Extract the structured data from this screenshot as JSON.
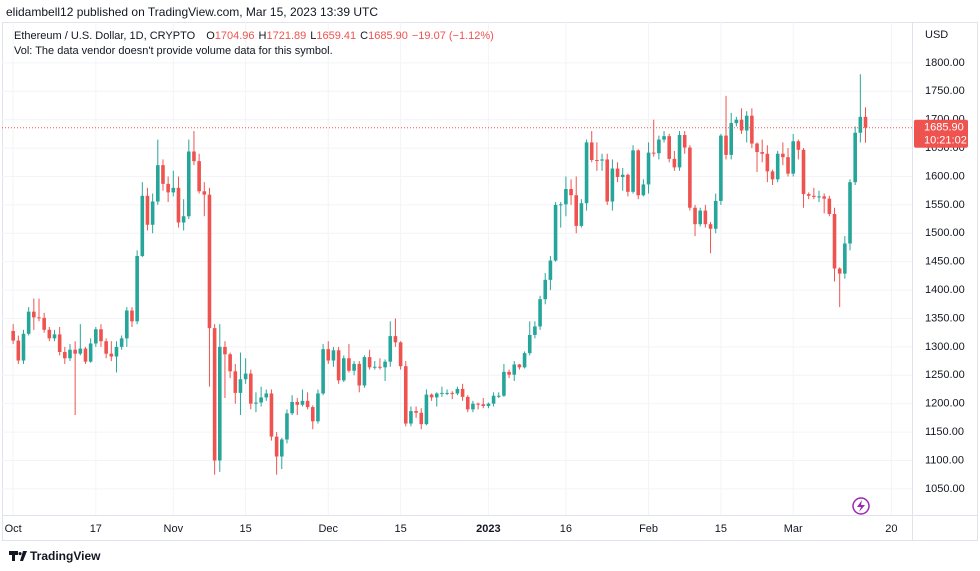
{
  "header": "elidambell12 published on TradingView.com, Mar 15, 2023 13:39 UTC",
  "footer": "TradingView",
  "chart_data": {
    "type": "candlestick",
    "title": "Ethereum / U.S. Dollar, 1D, CRYPTO",
    "ohlc_labels": [
      "O",
      "H",
      "L",
      "C"
    ],
    "ohlc_value_labels": [
      "1704.96",
      "1721.89",
      "1659.41",
      "1685.90"
    ],
    "change_label": "−19.07 (−1.12%)",
    "annotation": "Vol: The data vendor doesn't provide volume data for this symbol.",
    "y_axis_label": "USD",
    "last_price": {
      "value": 1685.9,
      "label": "1685.90"
    },
    "countdown": "10:21:02",
    "up_color": "#26a69a",
    "down_color": "#ef5350",
    "grid": true,
    "categories": [
      "Oct 1",
      "Oct 2",
      "Oct 3",
      "Oct 4",
      "Oct 5",
      "Oct 6",
      "Oct 7",
      "Oct 8",
      "Oct 9",
      "Oct 10",
      "Oct 11",
      "Oct 12",
      "Oct 13",
      "Oct 14",
      "Oct 15",
      "Oct 16",
      "Oct 17",
      "Oct 18",
      "Oct 19",
      "Oct 20",
      "Oct 21",
      "Oct 22",
      "Oct 23",
      "Oct 24",
      "Oct 25",
      "Oct 26",
      "Oct 27",
      "Oct 28",
      "Oct 29",
      "Oct 30",
      "Oct 31",
      "Nov 1",
      "Nov 2",
      "Nov 3",
      "Nov 4",
      "Nov 5",
      "Nov 6",
      "Nov 7",
      "Nov 8",
      "Nov 9",
      "Nov 10",
      "Nov 11",
      "Nov 12",
      "Nov 13",
      "Nov 14",
      "Nov 15",
      "Nov 16",
      "Nov 17",
      "Nov 18",
      "Nov 19",
      "Nov 20",
      "Nov 21",
      "Nov 22",
      "Nov 23",
      "Nov 24",
      "Nov 25",
      "Nov 26",
      "Nov 27",
      "Nov 28",
      "Nov 29",
      "Nov 30",
      "Dec 1",
      "Dec 2",
      "Dec 3",
      "Dec 4",
      "Dec 5",
      "Dec 6",
      "Dec 7",
      "Dec 8",
      "Dec 9",
      "Dec 10",
      "Dec 11",
      "Dec 12",
      "Dec 13",
      "Dec 14",
      "Dec 15",
      "Dec 16",
      "Dec 17",
      "Dec 18",
      "Dec 19",
      "Dec 20",
      "Dec 21",
      "Dec 22",
      "Dec 23",
      "Dec 24",
      "Dec 25",
      "Dec 26",
      "Dec 27",
      "Dec 28",
      "Dec 29",
      "Dec 30",
      "Dec 31",
      "Jan 1",
      "Jan 2",
      "Jan 3",
      "Jan 4",
      "Jan 5",
      "Jan 6",
      "Jan 7",
      "Jan 8",
      "Jan 9",
      "Jan 10",
      "Jan 11",
      "Jan 12",
      "Jan 13",
      "Jan 14",
      "Jan 15",
      "Jan 16",
      "Jan 17",
      "Jan 18",
      "Jan 19",
      "Jan 20",
      "Jan 21",
      "Jan 22",
      "Jan 23",
      "Jan 24",
      "Jan 25",
      "Jan 26",
      "Jan 27",
      "Jan 28",
      "Jan 29",
      "Jan 30",
      "Jan 31",
      "Feb 1",
      "Feb 2",
      "Feb 3",
      "Feb 4",
      "Feb 5",
      "Feb 6",
      "Feb 7",
      "Feb 8",
      "Feb 9",
      "Feb 10",
      "Feb 11",
      "Feb 12",
      "Feb 13",
      "Feb 14",
      "Feb 15",
      "Feb 16",
      "Feb 17",
      "Feb 18",
      "Feb 19",
      "Feb 20",
      "Feb 21",
      "Feb 22",
      "Feb 23",
      "Feb 24",
      "Feb 25",
      "Feb 26",
      "Feb 27",
      "Feb 28",
      "Mar 1",
      "Mar 2",
      "Mar 3",
      "Mar 4",
      "Mar 5",
      "Mar 6",
      "Mar 7",
      "Mar 8",
      "Mar 9",
      "Mar 10",
      "Mar 11",
      "Mar 12",
      "Mar 13",
      "Mar 14",
      "Mar 15"
    ],
    "open": [
      1328,
      1311,
      1276,
      1323,
      1362,
      1352,
      1351,
      1330,
      1315,
      1322,
      1291,
      1280,
      1295,
      1288,
      1297,
      1274,
      1306,
      1331,
      1310,
      1288,
      1283,
      1300,
      1315,
      1364,
      1345,
      1460,
      1566,
      1515,
      1556,
      1620,
      1587,
      1572,
      1580,
      1519,
      1530,
      1644,
      1627,
      1574,
      1568,
      1333,
      1100,
      1300,
      1287,
      1257,
      1219,
      1243,
      1253,
      1200,
      1202,
      1211,
      1218,
      1142,
      1107,
      1137,
      1183,
      1203,
      1198,
      1205,
      1194,
      1169,
      1218,
      1296,
      1276,
      1294,
      1241,
      1280,
      1258,
      1270,
      1232,
      1282,
      1264,
      1265,
      1264,
      1274,
      1319,
      1308,
      1266,
      1165,
      1187,
      1184,
      1164,
      1216,
      1211,
      1218,
      1219,
      1219,
      1218,
      1226,
      1212,
      1190,
      1200,
      1199,
      1196,
      1200,
      1214,
      1214,
      1256,
      1251,
      1269,
      1264,
      1289,
      1321,
      1336,
      1384,
      1418,
      1452,
      1550,
      1551,
      1578,
      1567,
      1513,
      1553,
      1660,
      1629,
      1628,
      1630,
      1556,
      1614,
      1599,
      1603,
      1573,
      1646,
      1567,
      1586,
      1642,
      1641,
      1665,
      1671,
      1631,
      1616,
      1673,
      1651,
      1545,
      1516,
      1540,
      1516,
      1508,
      1557,
      1672,
      1638,
      1694,
      1700,
      1681,
      1707,
      1658,
      1643,
      1640,
      1609,
      1595,
      1640,
      1634,
      1605,
      1662,
      1647,
      1569,
      1566,
      1564,
      1565,
      1561,
      1534,
      1438,
      1429,
      1482,
      1590,
      1677,
      1704.96
    ],
    "high": [
      1340,
      1320,
      1330,
      1370,
      1385,
      1385,
      1360,
      1335,
      1330,
      1335,
      1300,
      1305,
      1310,
      1340,
      1300,
      1315,
      1335,
      1340,
      1315,
      1310,
      1310,
      1320,
      1370,
      1370,
      1470,
      1590,
      1580,
      1570,
      1665,
      1630,
      1600,
      1610,
      1600,
      1560,
      1665,
      1680,
      1640,
      1590,
      1580,
      1340,
      1340,
      1310,
      1290,
      1270,
      1290,
      1280,
      1260,
      1220,
      1230,
      1225,
      1225,
      1150,
      1140,
      1190,
      1215,
      1210,
      1225,
      1220,
      1197,
      1225,
      1305,
      1310,
      1300,
      1300,
      1285,
      1305,
      1275,
      1275,
      1285,
      1295,
      1275,
      1280,
      1278,
      1345,
      1350,
      1310,
      1275,
      1195,
      1195,
      1192,
      1225,
      1218,
      1220,
      1230,
      1225,
      1222,
      1230,
      1235,
      1215,
      1205,
      1202,
      1210,
      1202,
      1220,
      1220,
      1270,
      1260,
      1275,
      1270,
      1292,
      1345,
      1345,
      1390,
      1430,
      1460,
      1555,
      1555,
      1600,
      1595,
      1600,
      1560,
      1665,
      1680,
      1660,
      1640,
      1640,
      1630,
      1625,
      1615,
      1605,
      1655,
      1648,
      1595,
      1660,
      1700,
      1672,
      1680,
      1675,
      1645,
      1680,
      1680,
      1655,
      1550,
      1545,
      1550,
      1520,
      1570,
      1675,
      1742,
      1712,
      1705,
      1720,
      1715,
      1720,
      1660,
      1665,
      1655,
      1612,
      1645,
      1660,
      1650,
      1675,
      1665,
      1650,
      1572,
      1580,
      1575,
      1570,
      1566,
      1545,
      1440,
      1495,
      1595,
      1688,
      1780,
      1721.89
    ],
    "low": [
      1305,
      1270,
      1270,
      1320,
      1330,
      1345,
      1325,
      1310,
      1310,
      1285,
      1270,
      1275,
      1180,
      1285,
      1270,
      1272,
      1300,
      1300,
      1280,
      1275,
      1255,
      1295,
      1300,
      1335,
      1340,
      1458,
      1505,
      1500,
      1550,
      1575,
      1555,
      1565,
      1510,
      1505,
      1525,
      1620,
      1570,
      1530,
      1230,
      1075,
      1080,
      1210,
      1245,
      1200,
      1180,
      1235,
      1190,
      1185,
      1195,
      1205,
      1135,
      1075,
      1085,
      1130,
      1180,
      1180,
      1195,
      1190,
      1155,
      1165,
      1215,
      1270,
      1265,
      1235,
      1238,
      1255,
      1250,
      1220,
      1228,
      1260,
      1260,
      1260,
      1240,
      1265,
      1300,
      1260,
      1160,
      1160,
      1175,
      1155,
      1162,
      1205,
      1195,
      1212,
      1215,
      1208,
      1215,
      1205,
      1185,
      1185,
      1190,
      1192,
      1192,
      1195,
      1210,
      1212,
      1245,
      1240,
      1260,
      1262,
      1285,
      1315,
      1330,
      1375,
      1400,
      1450,
      1510,
      1530,
      1550,
      1500,
      1510,
      1540,
      1625,
      1610,
      1610,
      1550,
      1540,
      1590,
      1575,
      1565,
      1570,
      1560,
      1565,
      1570,
      1635,
      1630,
      1660,
      1625,
      1610,
      1610,
      1640,
      1540,
      1495,
      1512,
      1510,
      1465,
      1500,
      1550,
      1630,
      1630,
      1688,
      1675,
      1660,
      1650,
      1608,
      1625,
      1590,
      1585,
      1590,
      1620,
      1600,
      1600,
      1630,
      1545,
      1560,
      1560,
      1555,
      1535,
      1530,
      1415,
      1370,
      1420,
      1470,
      1585,
      1660,
      1659.41
    ],
    "close": [
      1311,
      1276,
      1323,
      1362,
      1352,
      1351,
      1330,
      1315,
      1322,
      1291,
      1280,
      1295,
      1288,
      1297,
      1274,
      1306,
      1331,
      1310,
      1288,
      1283,
      1300,
      1315,
      1364,
      1345,
      1460,
      1566,
      1515,
      1556,
      1620,
      1587,
      1572,
      1580,
      1519,
      1530,
      1644,
      1627,
      1574,
      1568,
      1333,
      1100,
      1300,
      1287,
      1257,
      1219,
      1243,
      1253,
      1200,
      1202,
      1211,
      1218,
      1142,
      1107,
      1137,
      1183,
      1203,
      1198,
      1205,
      1194,
      1169,
      1218,
      1296,
      1276,
      1294,
      1241,
      1280,
      1258,
      1270,
      1232,
      1282,
      1264,
      1265,
      1264,
      1274,
      1319,
      1308,
      1266,
      1165,
      1187,
      1184,
      1164,
      1216,
      1211,
      1218,
      1219,
      1219,
      1218,
      1226,
      1212,
      1190,
      1200,
      1199,
      1196,
      1200,
      1214,
      1214,
      1256,
      1251,
      1269,
      1264,
      1289,
      1321,
      1336,
      1384,
      1418,
      1452,
      1550,
      1551,
      1578,
      1567,
      1513,
      1553,
      1660,
      1629,
      1628,
      1630,
      1556,
      1614,
      1599,
      1603,
      1573,
      1646,
      1567,
      1586,
      1642,
      1641,
      1665,
      1671,
      1631,
      1616,
      1673,
      1651,
      1545,
      1516,
      1540,
      1516,
      1508,
      1557,
      1672,
      1638,
      1694,
      1700,
      1681,
      1707,
      1658,
      1643,
      1640,
      1609,
      1595,
      1640,
      1634,
      1605,
      1662,
      1647,
      1569,
      1566,
      1564,
      1565,
      1561,
      1534,
      1438,
      1429,
      1482,
      1590,
      1677,
      1704.96,
      1685.9
    ],
    "xlim": [
      "Sep 30",
      "Mar 24"
    ],
    "xticks": [
      {
        "value": "Oct 1",
        "label": "Oct"
      },
      {
        "value": "Oct 17",
        "label": "17"
      },
      {
        "value": "Nov 1",
        "label": "Nov"
      },
      {
        "value": "Nov 15",
        "label": "15"
      },
      {
        "value": "Dec 1",
        "label": "Dec"
      },
      {
        "value": "Dec 15",
        "label": "15"
      },
      {
        "value": "Jan 1",
        "label": "2023",
        "bold": true
      },
      {
        "value": "Jan 16",
        "label": "16"
      },
      {
        "value": "Feb 1",
        "label": "Feb"
      },
      {
        "value": "Feb 15",
        "label": "15"
      },
      {
        "value": "Mar 1",
        "label": "Mar"
      },
      {
        "value": "Mar 20",
        "label": "20"
      }
    ],
    "ylim": [
      1004,
      1872
    ],
    "yticks": [
      {
        "value": 1050,
        "label": "1050.00"
      },
      {
        "value": 1100,
        "label": "1100.00"
      },
      {
        "value": 1150,
        "label": "1150.00"
      },
      {
        "value": 1200,
        "label": "1200.00"
      },
      {
        "value": 1250,
        "label": "1250.00"
      },
      {
        "value": 1300,
        "label": "1300.00"
      },
      {
        "value": 1350,
        "label": "1350.00"
      },
      {
        "value": 1400,
        "label": "1400.00"
      },
      {
        "value": 1450,
        "label": "1450.00"
      },
      {
        "value": 1500,
        "label": "1500.00"
      },
      {
        "value": 1550,
        "label": "1550.00"
      },
      {
        "value": 1600,
        "label": "1600.00"
      },
      {
        "value": 1650,
        "label": "1650.00"
      },
      {
        "value": 1700,
        "label": "1700.00"
      },
      {
        "value": 1750,
        "label": "1750.00"
      },
      {
        "value": 1800,
        "label": "1800.00"
      }
    ]
  }
}
